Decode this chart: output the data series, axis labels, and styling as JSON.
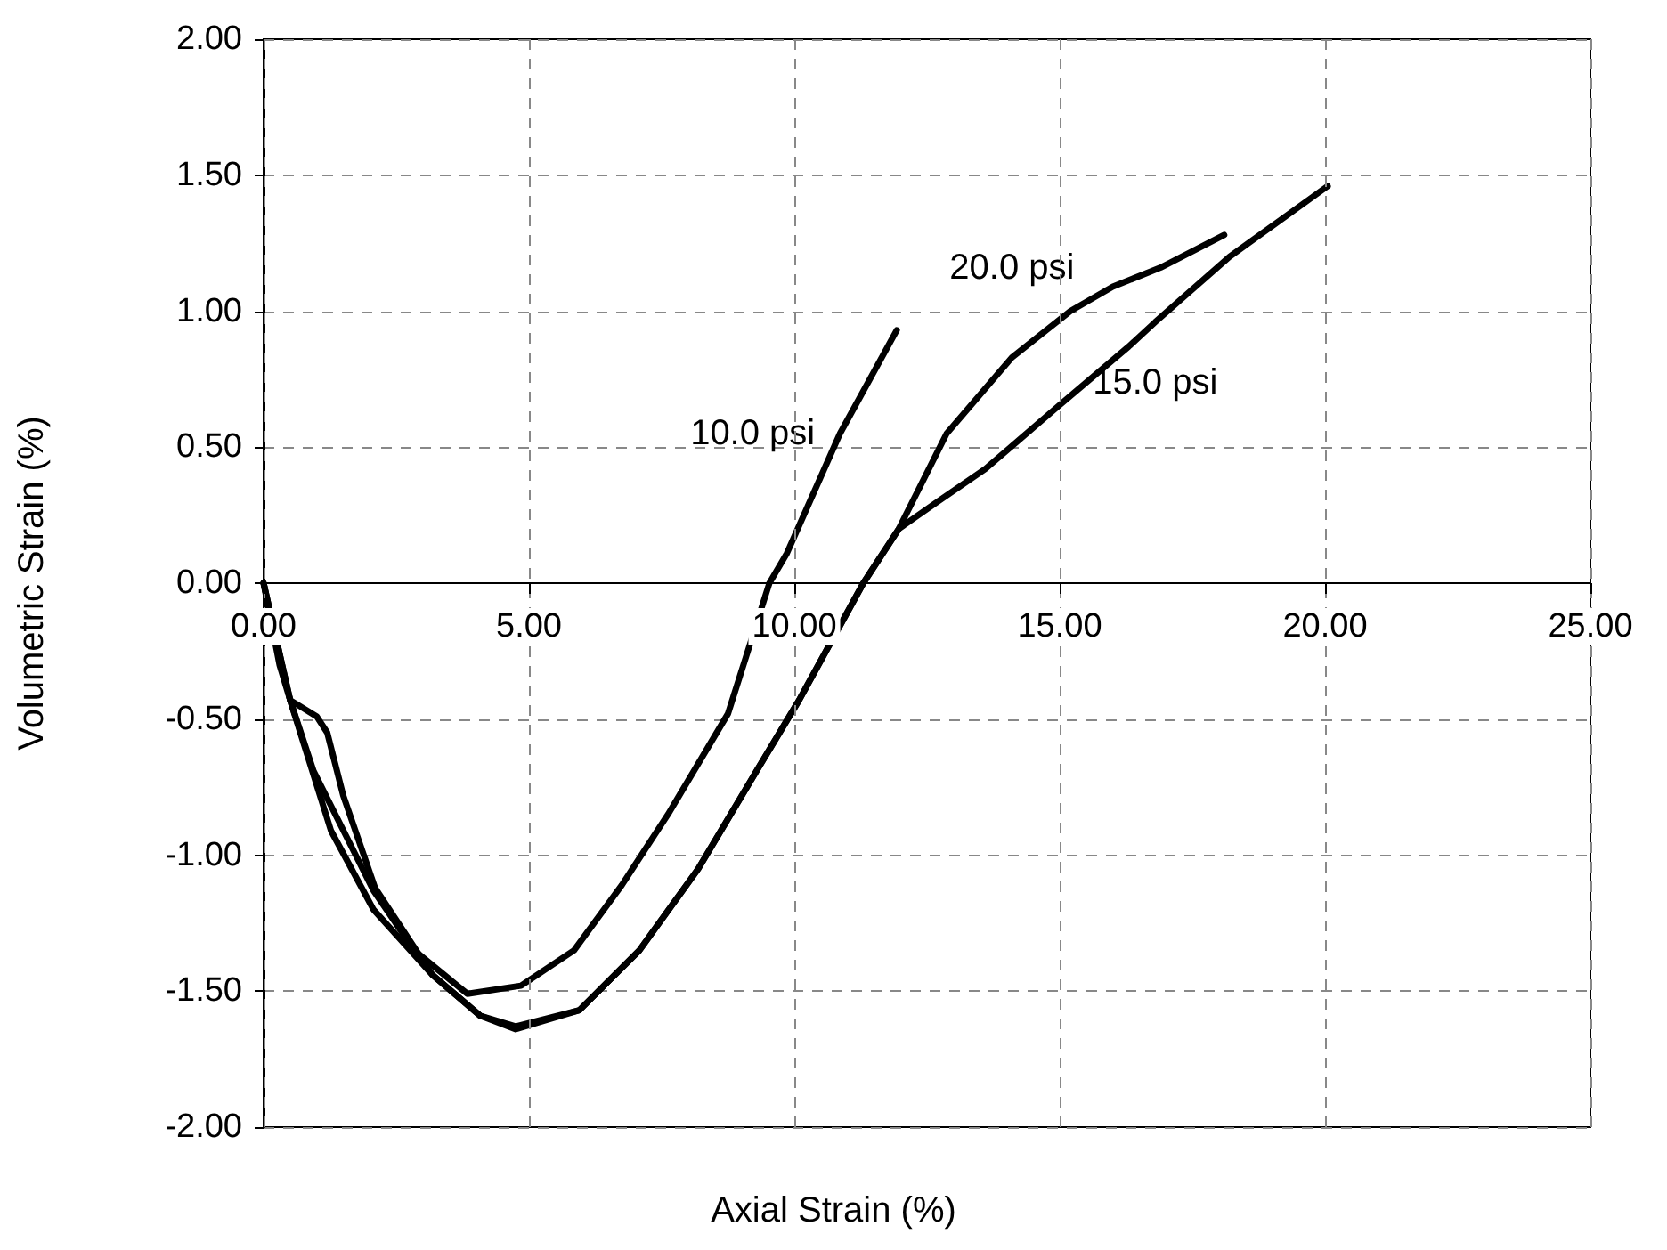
{
  "chart_data": {
    "type": "line",
    "xlabel": "Axial Strain (%)",
    "ylabel": "Volumetric Strain (%)",
    "xlim": [
      0,
      25
    ],
    "xticks": [
      {
        "value": 0,
        "label": "0.00"
      },
      {
        "value": 5,
        "label": "5.00"
      },
      {
        "value": 10,
        "label": "10.00"
      },
      {
        "value": 15,
        "label": "15.00"
      },
      {
        "value": 20,
        "label": "20.00"
      },
      {
        "value": 25,
        "label": "25.00"
      }
    ],
    "ylim": [
      -2,
      2
    ],
    "yticks": [
      {
        "value": -2,
        "label": "-2.00"
      },
      {
        "value": -1.5,
        "label": "-1.50"
      },
      {
        "value": -1,
        "label": "-1.00"
      },
      {
        "value": -0.5,
        "label": "-0.50"
      },
      {
        "value": 0,
        "label": "0.00"
      },
      {
        "value": 0.5,
        "label": "0.50"
      },
      {
        "value": 1,
        "label": "1.00"
      },
      {
        "value": 1.5,
        "label": "1.50"
      },
      {
        "value": 2,
        "label": "2.00"
      }
    ],
    "grid": true,
    "legend": false,
    "marker": "none",
    "line_style": "solid",
    "series": [
      {
        "name": "10.0 psi",
        "color": "#000000",
        "x": [
          0,
          0.5,
          0.94,
          2.07,
          2.84,
          3.84,
          4.85,
          5.85,
          6.75,
          7.62,
          8.75,
          9.53,
          9.86,
          10.86,
          11.93
        ],
        "values": [
          0,
          -0.43,
          -0.69,
          -1.13,
          -1.35,
          -1.51,
          -1.48,
          -1.35,
          -1.11,
          -0.85,
          -0.48,
          0,
          0.11,
          0.55,
          0.93
        ]
      },
      {
        "name": "15.0 psi",
        "color": "#000000",
        "x": [
          0,
          0.3,
          0.5,
          1.0,
          1.2,
          1.5,
          2.1,
          3.18,
          4.08,
          4.75,
          5.95,
          7.08,
          8.19,
          9.29,
          10.09,
          11.3,
          11.97,
          12.63,
          13.6,
          14.97,
          16.3,
          16.8,
          18.2,
          20.05
        ],
        "values": [
          0,
          -0.3,
          -0.43,
          -0.49,
          -0.55,
          -0.78,
          -1.12,
          -1.44,
          -1.59,
          -1.63,
          -1.57,
          -1.35,
          -1.05,
          -0.69,
          -0.43,
          0,
          0.2,
          0.29,
          0.42,
          0.65,
          0.87,
          0.96,
          1.2,
          1.46
        ]
      },
      {
        "name": "20.0 psi",
        "color": "#000000",
        "x": [
          0,
          0.5,
          1.27,
          2.07,
          3.18,
          4.08,
          4.75,
          5.95,
          7.08,
          8.19,
          9.29,
          10.09,
          11.3,
          11.97,
          12.87,
          14.1,
          15.2,
          16.0,
          16.9,
          18.1
        ],
        "values": [
          0,
          -0.43,
          -0.91,
          -1.2,
          -1.44,
          -1.59,
          -1.64,
          -1.57,
          -1.35,
          -1.05,
          -0.69,
          -0.43,
          0,
          0.2,
          0.55,
          0.83,
          1.0,
          1.09,
          1.16,
          1.28
        ]
      }
    ]
  }
}
